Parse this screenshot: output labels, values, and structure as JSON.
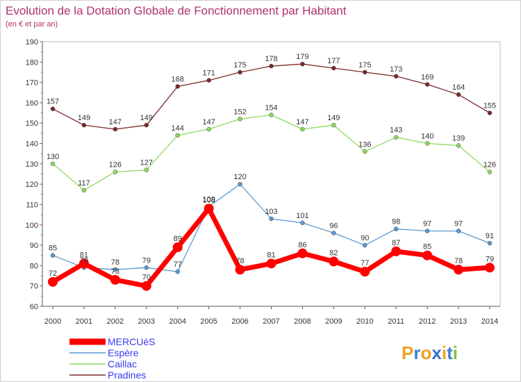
{
  "chart_data": {
    "type": "line",
    "title": "Evolution de la Dotation Globale de Fonctionnement par Habitant",
    "subtitle": "(en € et par an)",
    "x": [
      "2000",
      "2001",
      "2002",
      "2003",
      "2004",
      "2005",
      "2006",
      "2007",
      "2008",
      "2009",
      "2010",
      "2011",
      "2012",
      "2013",
      "2014"
    ],
    "ylim": [
      60,
      190
    ],
    "yticks": [
      60,
      70,
      80,
      90,
      100,
      110,
      120,
      130,
      140,
      150,
      160,
      170,
      180,
      190
    ],
    "grid": false,
    "legend_position": "bottom-left",
    "series": [
      {
        "name": "MERCUèS",
        "color": "#ff0000",
        "values": [
          72,
          81,
          73,
          70,
          89,
          108,
          78,
          81,
          86,
          82,
          77,
          87,
          85,
          78,
          79
        ]
      },
      {
        "name": "Espère",
        "color": "#5a9ad0",
        "values": [
          85,
          79,
          78,
          79,
          77,
          109,
          120,
          103,
          101,
          96,
          90,
          98,
          97,
          97,
          91
        ]
      },
      {
        "name": "Caillac",
        "color": "#8fd860",
        "values": [
          130,
          117,
          126,
          127,
          144,
          147,
          152,
          154,
          147,
          149,
          136,
          143,
          140,
          139,
          126
        ]
      },
      {
        "name": "Pradines",
        "color": "#7a2a2a",
        "values": [
          157,
          149,
          147,
          149,
          168,
          171,
          175,
          178,
          179,
          177,
          175,
          173,
          169,
          164,
          155
        ]
      }
    ]
  },
  "logo": {
    "text": "Proxiti",
    "letters": [
      "P",
      "r",
      "o",
      "x",
      "i",
      "t",
      "i"
    ],
    "colors": [
      "#f0a020",
      "#4080d0",
      "#f0a020",
      "#3070d0",
      "#f0a020",
      "#4080d0",
      "#80c040"
    ]
  }
}
